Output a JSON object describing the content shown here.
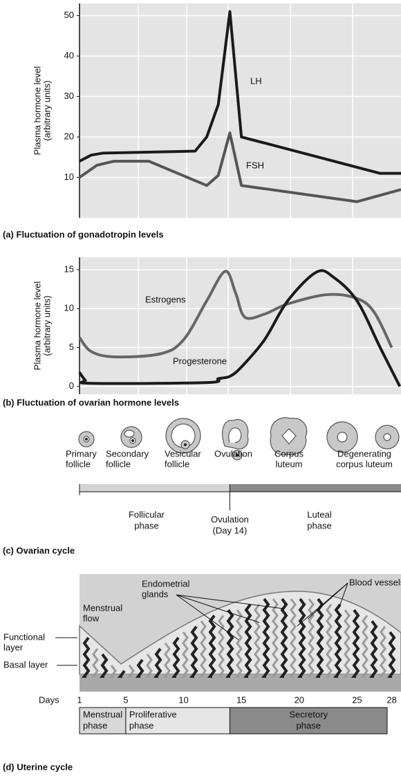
{
  "chart_data": [
    {
      "type": "line",
      "title": "(a) Fluctuation of gonadotropin levels",
      "ylabel": [
        "Plasma hormone level",
        "(arbitrary units)"
      ],
      "xlim": [
        1,
        28.8
      ],
      "ylim": [
        0,
        53
      ],
      "yticks": [
        10,
        20,
        30,
        40,
        50
      ],
      "grid": true,
      "series": [
        {
          "name": "LH",
          "color": "#1a1a1a",
          "x": [
            1,
            2,
            3,
            11,
            12,
            13,
            14,
            15,
            27,
            28.8
          ],
          "values": [
            14,
            15.5,
            16,
            16.5,
            20,
            28,
            51,
            20,
            11,
            11
          ]
        },
        {
          "name": "FSH",
          "color": "#555555",
          "x": [
            1,
            2.5,
            4,
            7,
            12,
            13,
            14,
            15,
            25,
            28.8
          ],
          "values": [
            10,
            13,
            14,
            14,
            8,
            10.5,
            21,
            8,
            4,
            7
          ]
        }
      ]
    },
    {
      "type": "line",
      "title": "(b) Fluctuation of ovarian hormone levels",
      "ylabel": [
        "Plasma hormone level",
        "(arbitrary units)"
      ],
      "xlim": [
        1,
        28.8
      ],
      "ylim": [
        -1,
        16.6
      ],
      "yticks": [
        0,
        5,
        10,
        15
      ],
      "grid": true,
      "series": [
        {
          "name": "Estrogens",
          "color": "#666666",
          "x": [
            1,
            2,
            4,
            8,
            10,
            12,
            13.6,
            14.5,
            15.3,
            17,
            19,
            22.4,
            25,
            26.5,
            28
          ],
          "values": [
            6.3,
            4.5,
            3.8,
            4.2,
            6,
            11,
            14.8,
            12,
            8.9,
            9.3,
            10.6,
            11.8,
            11.3,
            9.5,
            5
          ]
        },
        {
          "name": "Progesterone",
          "color": "#1a1a1a",
          "x": [
            1,
            1.5,
            2,
            12,
            13,
            14,
            15,
            17,
            19,
            21.5,
            23,
            25,
            27,
            28.7
          ],
          "values": [
            1.8,
            0.8,
            0.4,
            0.5,
            1,
            1.3,
            2.5,
            6,
            11,
            14.7,
            14,
            11,
            5,
            0
          ]
        }
      ]
    }
  ],
  "ovarian_cycle": {
    "title": "(c) Ovarian cycle",
    "stages": [
      [
        "Primary",
        "follicle"
      ],
      [
        "Secondary",
        "follicle"
      ],
      [
        "Vesicular",
        "follicle"
      ],
      [
        "Ovulation"
      ],
      [
        "Corpus",
        "luteum"
      ],
      [
        "Degenerating",
        "corpus luteum"
      ]
    ],
    "phases": [
      [
        "Follicular",
        "phase"
      ],
      [
        "Ovulation",
        "(Day 14)"
      ],
      [
        "Luteal",
        "phase"
      ]
    ]
  },
  "uterine_cycle": {
    "title": "(d) Uterine cycle",
    "glands": [
      "Endometrial",
      "glands"
    ],
    "vessels": "Blood vessels",
    "flow": [
      "Menstrual",
      "flow"
    ],
    "functional": [
      "Functional",
      "layer"
    ],
    "basal": "Basal layer",
    "days_label": "Days",
    "days": [
      1,
      5,
      10,
      15,
      20,
      25,
      28
    ],
    "phases": [
      [
        "Menstrual",
        "phase"
      ],
      [
        "Proliferative",
        "phase"
      ],
      [
        "Secretory",
        "phase"
      ]
    ]
  }
}
